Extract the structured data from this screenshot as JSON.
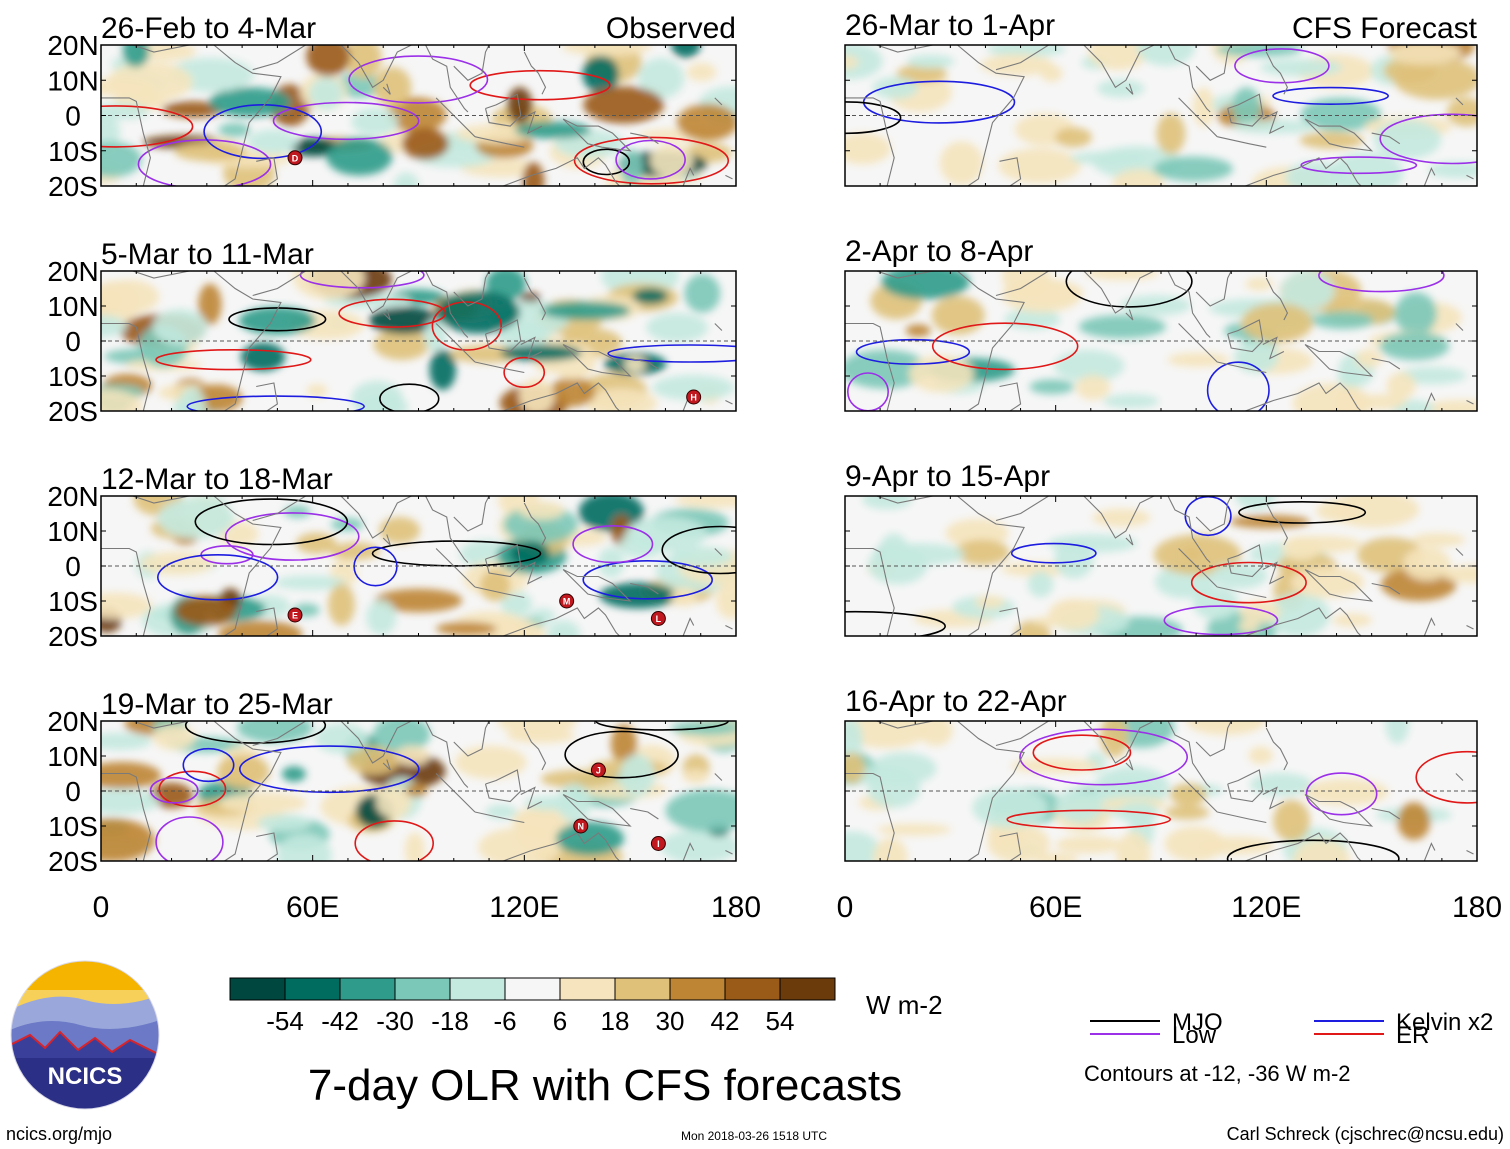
{
  "observed_label": "Observed",
  "forecast_label": "CFS Forecast",
  "lat_labels": [
    "20N",
    "10N",
    "0",
    "10S",
    "20S"
  ],
  "lon_labels": [
    "0",
    "60E",
    "120E",
    "180"
  ],
  "observed_panels": [
    "26-Feb to 4-Mar",
    "5-Mar to 11-Mar",
    "12-Mar to 18-Mar",
    "19-Mar to 25-Mar"
  ],
  "forecast_panels": [
    "26-Mar to 1-Apr",
    "2-Apr to 8-Apr",
    "9-Apr to 15-Apr",
    "16-Apr to 22-Apr"
  ],
  "storm_markers": [
    {
      "panel": 0,
      "label": "D",
      "lon": 55,
      "lat": -12
    },
    {
      "panel": 1,
      "label": "H",
      "lon": 168,
      "lat": -16
    },
    {
      "panel": 2,
      "label": "E",
      "lon": 55,
      "lat": -14
    },
    {
      "panel": 2,
      "label": "M",
      "lon": 132,
      "lat": -10
    },
    {
      "panel": 2,
      "label": "L",
      "lon": 158,
      "lat": -15
    },
    {
      "panel": 3,
      "label": "J",
      "lon": 141,
      "lat": 6
    },
    {
      "panel": 3,
      "label": "N",
      "lon": 136,
      "lat": -10
    },
    {
      "panel": 3,
      "label": "I",
      "lon": 158,
      "lat": -15
    }
  ],
  "colorbar": {
    "colors": [
      "#00483f",
      "#006b5f",
      "#2f9b8a",
      "#7cc8b8",
      "#c4e9df",
      "#f6f6f6",
      "#f5e4bd",
      "#dfc17a",
      "#be8534",
      "#9a5a18",
      "#6b3b0c"
    ],
    "ticks": [
      "-54",
      "-42",
      "-30",
      "-18",
      "-6",
      "6",
      "18",
      "30",
      "42",
      "54"
    ],
    "units": "W m-2"
  },
  "title": "7-day OLR with CFS forecasts",
  "logo_text": "NCICS",
  "legend": [
    {
      "name": "MJO",
      "color": "#000000"
    },
    {
      "name": "Kelvin x2",
      "color": "#1d1de0"
    },
    {
      "name": "Low",
      "color": "#9b30e8"
    },
    {
      "name": "ER",
      "color": "#e01818"
    }
  ],
  "contour_note": "Contours at -12, -36 W m-2",
  "footer_url": "ncics.org/mjo",
  "timestamp": "Mon 2018-03-26 1518 UTC",
  "credit": "Carl Schreck (cjschrec@ncsu.edu)"
}
